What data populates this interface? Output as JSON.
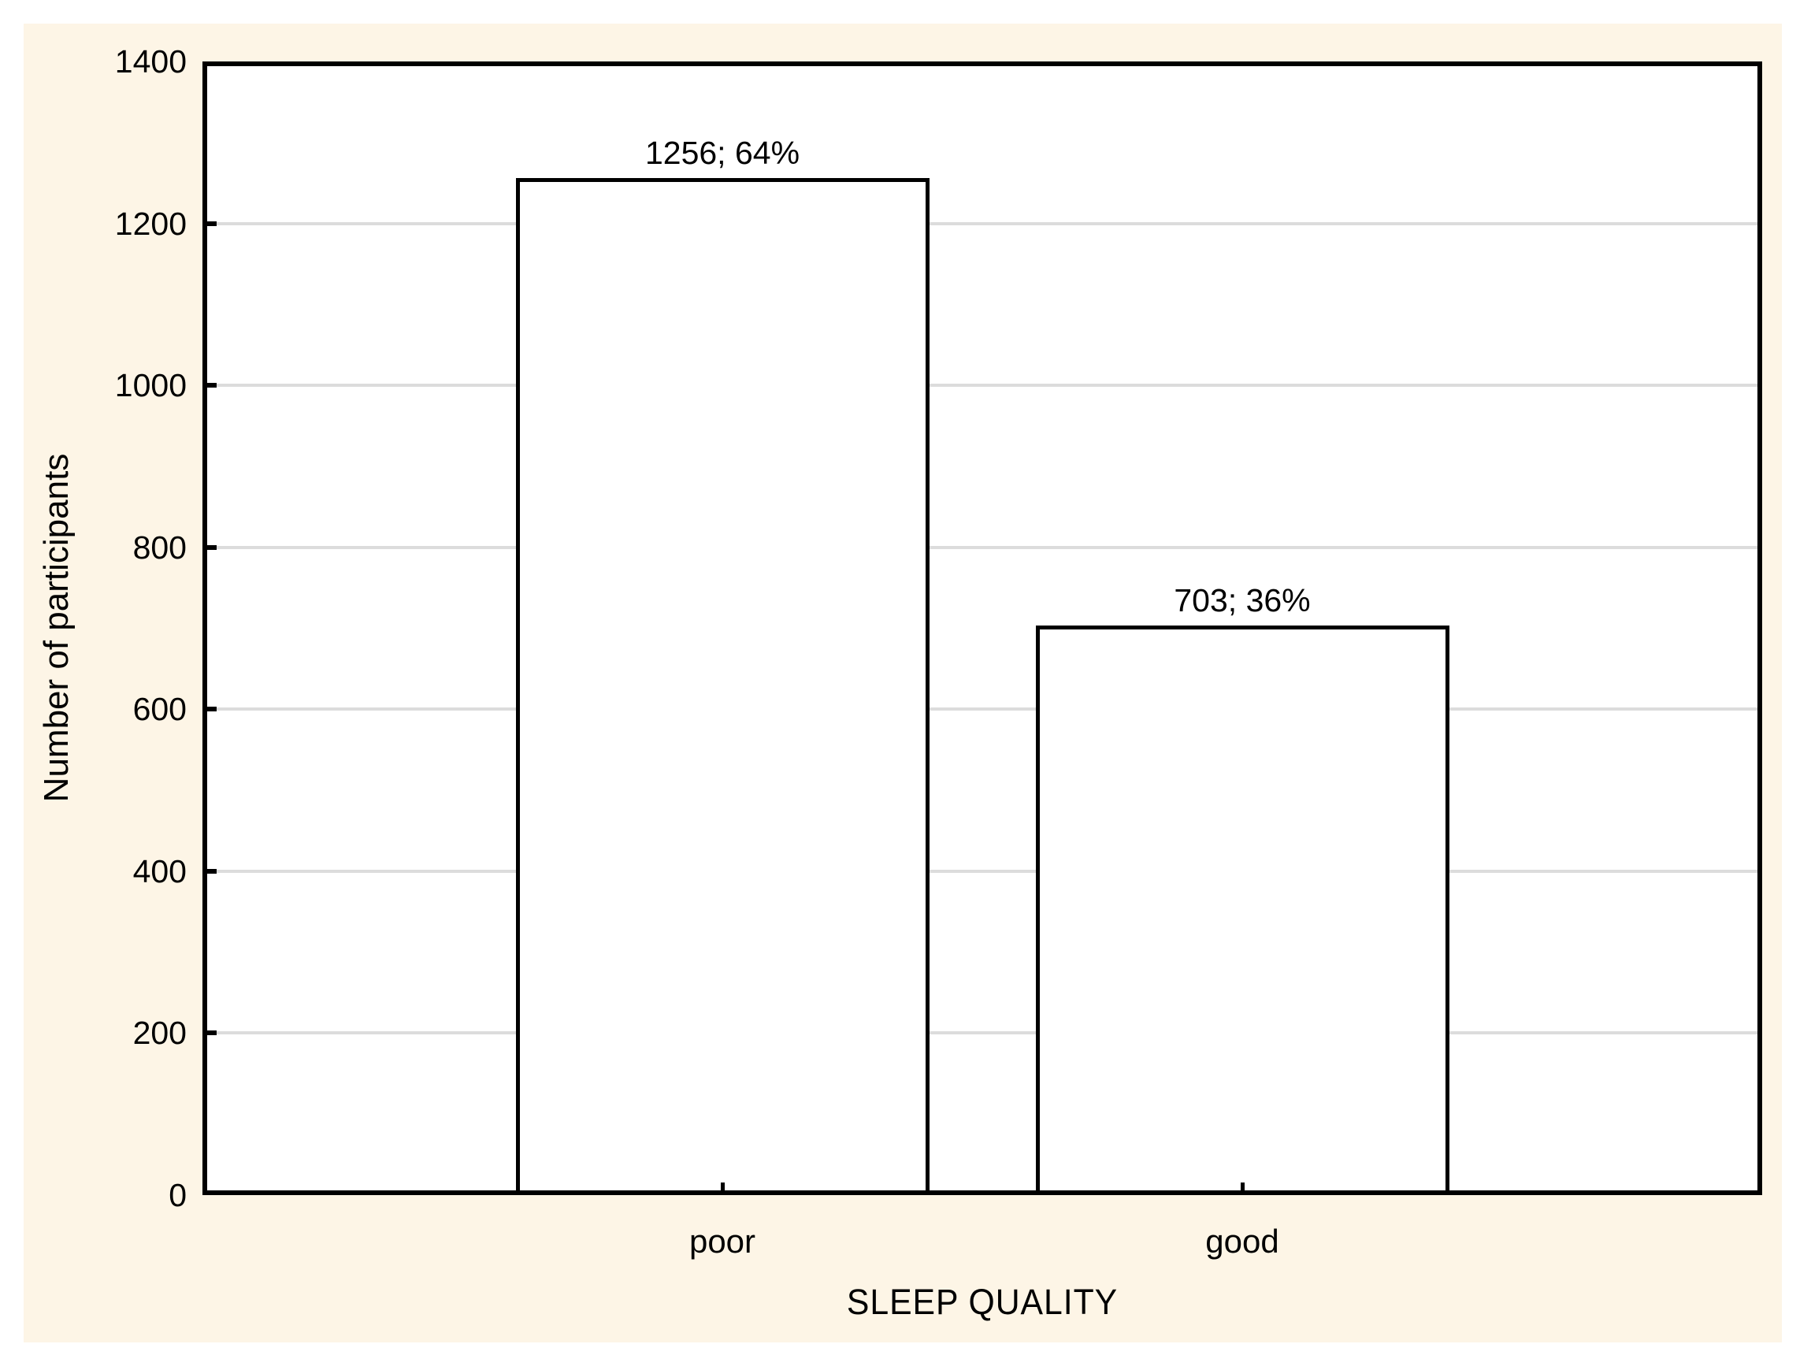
{
  "chart_data": {
    "type": "bar",
    "categories": [
      "poor",
      "good"
    ],
    "values": [
      1256,
      703
    ],
    "bar_labels": [
      "1256; 64%",
      "703; 36%"
    ],
    "xlabel": "SLEEP QUALITY",
    "ylabel": "Number of participants",
    "ylim": [
      0,
      1400
    ],
    "ytick_interval": 200,
    "ytick_labels": [
      "0",
      "200",
      "400",
      "600",
      "800",
      "1000",
      "1200",
      "1400"
    ],
    "grid": "horizontal",
    "legend": "none",
    "colors": {
      "canvas": "#ffffff",
      "panel_background": "#fdf5e6",
      "plot_background": "#ffffff",
      "bar_fill": "#ffffff",
      "bar_border": "#000000",
      "gridline": "#dcdcdc",
      "axis": "#000000",
      "text": "#000000"
    }
  }
}
